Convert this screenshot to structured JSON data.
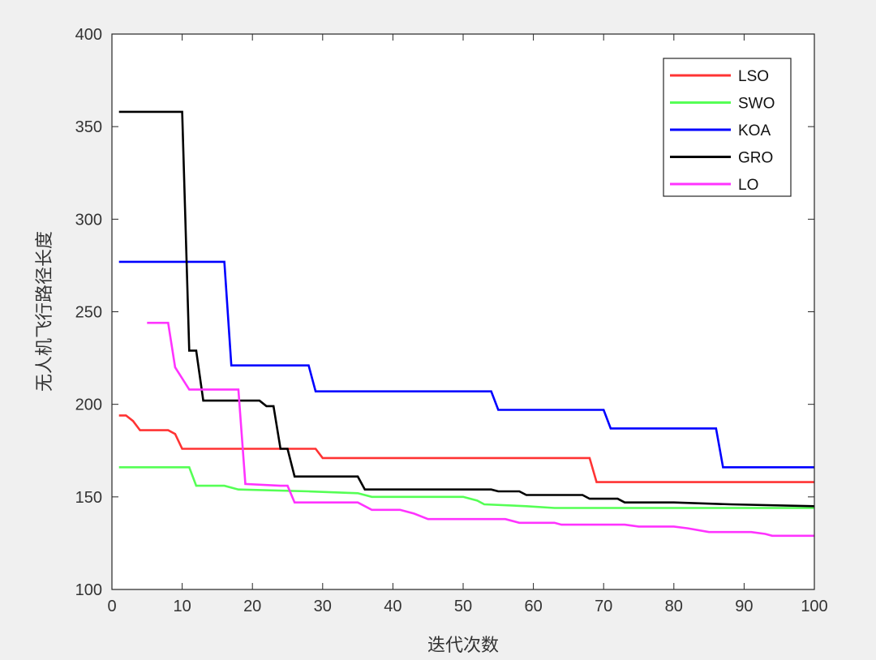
{
  "chart_data": {
    "type": "line",
    "title": "",
    "xlabel": "迭代次数",
    "ylabel": "无人机飞行路径长度",
    "xlim": [
      0,
      100
    ],
    "ylim": [
      100,
      400
    ],
    "xticks": [
      0,
      10,
      20,
      30,
      40,
      50,
      60,
      70,
      80,
      90,
      100
    ],
    "yticks": [
      100,
      150,
      200,
      250,
      300,
      350,
      400
    ],
    "grid": false,
    "legend_position": "top-right",
    "series": [
      {
        "name": "LSO",
        "color": "#ff3333",
        "points": [
          [
            1,
            194
          ],
          [
            2,
            194
          ],
          [
            3,
            191
          ],
          [
            4,
            186
          ],
          [
            8,
            186
          ],
          [
            9,
            184
          ],
          [
            10,
            176
          ],
          [
            29,
            176
          ],
          [
            30,
            171
          ],
          [
            68,
            171
          ],
          [
            69,
            158
          ],
          [
            100,
            158
          ]
        ]
      },
      {
        "name": "SWO",
        "color": "#55ff55",
        "points": [
          [
            1,
            166
          ],
          [
            11,
            166
          ],
          [
            12,
            156
          ],
          [
            16,
            156
          ],
          [
            18,
            154
          ],
          [
            28,
            153
          ],
          [
            35,
            152
          ],
          [
            37,
            150
          ],
          [
            50,
            150
          ],
          [
            52,
            148
          ],
          [
            53,
            146
          ],
          [
            59,
            145
          ],
          [
            63,
            144
          ],
          [
            100,
            144
          ]
        ]
      },
      {
        "name": "KOA",
        "color": "#0000ff",
        "points": [
          [
            1,
            277
          ],
          [
            16,
            277
          ],
          [
            17,
            221
          ],
          [
            28,
            221
          ],
          [
            29,
            207
          ],
          [
            54,
            207
          ],
          [
            55,
            197
          ],
          [
            70,
            197
          ],
          [
            71,
            187
          ],
          [
            86,
            187
          ],
          [
            87,
            166
          ],
          [
            100,
            166
          ]
        ]
      },
      {
        "name": "GRO",
        "color": "#000000",
        "points": [
          [
            1,
            358
          ],
          [
            10,
            358
          ],
          [
            11,
            229
          ],
          [
            12,
            229
          ],
          [
            13,
            202
          ],
          [
            21,
            202
          ],
          [
            22,
            199
          ],
          [
            23,
            199
          ],
          [
            24,
            176
          ],
          [
            25,
            176
          ],
          [
            26,
            161
          ],
          [
            35,
            161
          ],
          [
            36,
            154
          ],
          [
            54,
            154
          ],
          [
            55,
            153
          ],
          [
            58,
            153
          ],
          [
            59,
            151
          ],
          [
            67,
            151
          ],
          [
            68,
            149
          ],
          [
            72,
            149
          ],
          [
            73,
            147
          ],
          [
            80,
            147
          ],
          [
            88,
            146
          ],
          [
            100,
            145
          ]
        ]
      },
      {
        "name": "LO",
        "color": "#ff33ff",
        "points": [
          [
            5,
            244
          ],
          [
            8,
            244
          ],
          [
            9,
            220
          ],
          [
            10,
            214
          ],
          [
            11,
            208
          ],
          [
            18,
            208
          ],
          [
            19,
            157
          ],
          [
            24,
            156
          ],
          [
            25,
            156
          ],
          [
            26,
            147
          ],
          [
            35,
            147
          ],
          [
            37,
            143
          ],
          [
            41,
            143
          ],
          [
            43,
            141
          ],
          [
            45,
            138
          ],
          [
            52,
            138
          ],
          [
            56,
            138
          ],
          [
            58,
            136
          ],
          [
            63,
            136
          ],
          [
            64,
            135
          ],
          [
            73,
            135
          ],
          [
            75,
            134
          ],
          [
            80,
            134
          ],
          [
            82,
            133
          ],
          [
            85,
            131
          ],
          [
            91,
            131
          ],
          [
            93,
            130
          ],
          [
            94,
            129
          ],
          [
            100,
            129
          ]
        ]
      }
    ]
  }
}
